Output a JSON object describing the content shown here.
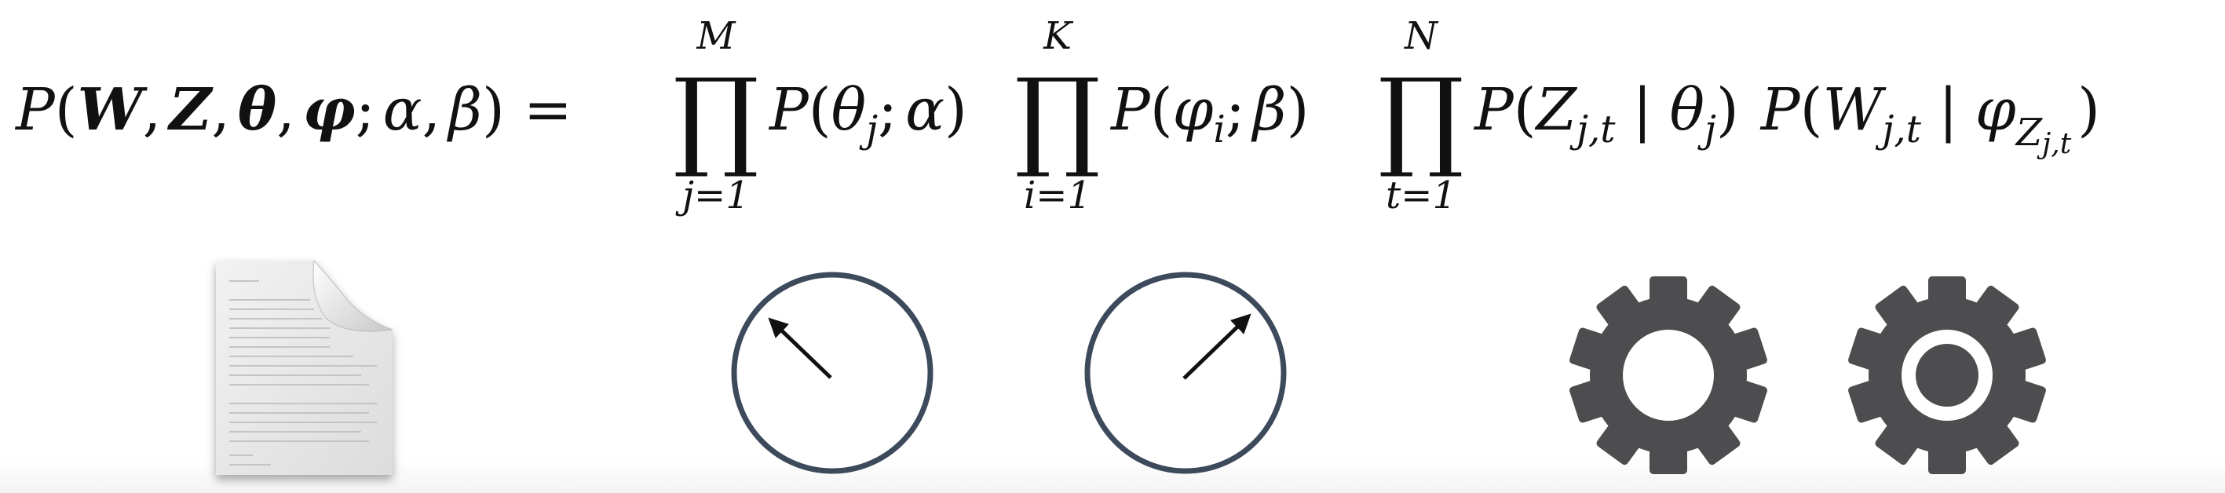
{
  "formula": {
    "lhs": {
      "P": "P",
      "open": "(",
      "W": "W",
      "comma1": ",",
      "Z": "Z",
      "comma2": ",",
      "theta": "θ",
      "comma3": ",",
      "phi": "φ",
      "semicolon": ";",
      "alpha": "α",
      "comma4": ",",
      "beta": "β",
      "close": ")",
      "equals": "="
    },
    "product1": {
      "symbol": "∏",
      "upper": "M",
      "lower": "j=1",
      "term": {
        "P": "P",
        "open": "(",
        "theta": "θ",
        "sub": "j",
        "semicolon": ";",
        "alpha": "α",
        "close": ")"
      }
    },
    "product2": {
      "symbol": "∏",
      "upper": "K",
      "lower": "i=1",
      "term": {
        "P": "P",
        "open": "(",
        "phi": "φ",
        "sub": "i",
        "semicolon": ";",
        "beta": "β",
        "close": ")"
      }
    },
    "product3": {
      "symbol": "∏",
      "upper": "N",
      "lower": "t=1",
      "term1": {
        "P": "P",
        "open": "(",
        "Z": "Z",
        "sub": "j,t",
        "bar": "|",
        "theta": "θ",
        "theta_sub": "j",
        "close": ")"
      },
      "term2": {
        "P": "P",
        "open": "(",
        "W": "W",
        "sub": "j,t",
        "bar": "|",
        "phi": "φ",
        "phi_sub": "Z",
        "phi_subsub": "j,t",
        "close": ")"
      }
    }
  },
  "icons": [
    {
      "name": "document-icon",
      "color": "#b8b8b8"
    },
    {
      "name": "dial-arrow-left-icon",
      "color": "#3d4a5c"
    },
    {
      "name": "dial-arrow-right-icon",
      "color": "#3d4a5c"
    },
    {
      "name": "gear-icon",
      "color": "#4d4d4f"
    },
    {
      "name": "gear-with-dot-icon",
      "color": "#4d4d4f"
    }
  ]
}
